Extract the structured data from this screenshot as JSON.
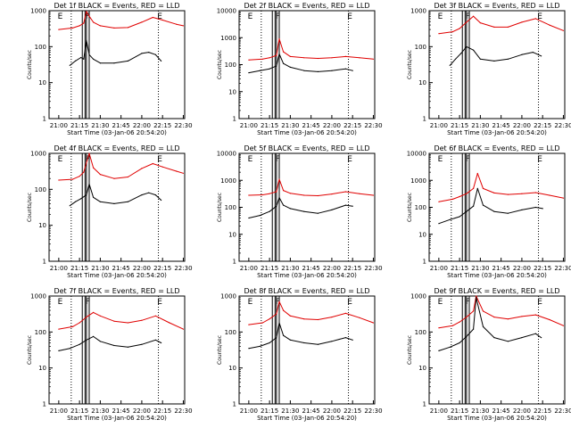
{
  "figure": {
    "title_template": "Det {n}f BLACK = Events, RED = LLD",
    "xlabel": "Start Time (03-Jan-06 20:54:20)",
    "ylabel": "Counts/sec",
    "marker_letters": [
      "E",
      "F",
      "E"
    ],
    "colors": {
      "events": "#000000",
      "lld": "#e00000",
      "frame": "#000000"
    }
  },
  "chart_data": [
    {
      "type": "line",
      "title": "Det 1f BLACK = Events, RED = LLD",
      "x_ticks": [
        "21:00",
        "21:15",
        "21:30",
        "21:45",
        "22:00",
        "22:15",
        "22:30"
      ],
      "y_ticks": [
        "1",
        "10",
        "100",
        "1000"
      ],
      "ylim": [
        1,
        1000
      ],
      "y_scale": "log",
      "xlabel": "Start Time (03-Jan-06 20:54:20)",
      "ylabel": "Counts/sec",
      "series": [
        {
          "name": "Events",
          "color": "#000000",
          "x": [
            "21:08",
            "21:12",
            "21:16",
            "21:18",
            "21:20",
            "21:22",
            "21:25",
            "21:30",
            "21:40",
            "21:50",
            "22:00",
            "22:05",
            "22:10",
            "22:14"
          ],
          "y": [
            30,
            40,
            50,
            45,
            150,
            60,
            45,
            35,
            35,
            40,
            65,
            70,
            60,
            40
          ]
        },
        {
          "name": "LLD",
          "color": "#e00000",
          "x": [
            "21:00",
            "21:10",
            "21:15",
            "21:18",
            "21:20",
            "21:22",
            "21:25",
            "21:30",
            "21:40",
            "21:50",
            "22:00",
            "22:08",
            "22:15",
            "22:25",
            "22:30"
          ],
          "y": [
            300,
            330,
            380,
            450,
            950,
            700,
            480,
            380,
            330,
            340,
            480,
            650,
            550,
            420,
            380
          ]
        }
      ]
    },
    {
      "type": "line",
      "title": "Det 2f BLACK = Events, RED = LLD",
      "x_ticks": [
        "21:00",
        "21:15",
        "21:30",
        "21:45",
        "22:00",
        "22:15",
        "22:30"
      ],
      "y_ticks": [
        "1",
        "10",
        "100",
        "1000",
        "10000"
      ],
      "ylim": [
        1,
        10000
      ],
      "y_scale": "log",
      "xlabel": "Start Time (03-Jan-06 20:54:20)",
      "ylabel": "Counts/sec",
      "series": [
        {
          "name": "Events",
          "color": "#000000",
          "x": [
            "21:00",
            "21:08",
            "21:15",
            "21:20",
            "21:22",
            "21:25",
            "21:30",
            "21:40",
            "21:50",
            "22:00",
            "22:10",
            "22:15"
          ],
          "y": [
            50,
            60,
            70,
            90,
            250,
            110,
            80,
            60,
            55,
            60,
            70,
            60
          ]
        },
        {
          "name": "LLD",
          "color": "#e00000",
          "x": [
            "21:00",
            "21:10",
            "21:15",
            "21:20",
            "21:22",
            "21:25",
            "21:30",
            "21:40",
            "21:50",
            "22:00",
            "22:10",
            "22:20",
            "22:30"
          ],
          "y": [
            150,
            160,
            180,
            220,
            900,
            300,
            200,
            180,
            170,
            180,
            200,
            180,
            160
          ]
        }
      ]
    },
    {
      "type": "line",
      "title": "Det 3f BLACK = Events, RED = LLD",
      "x_ticks": [
        "21:00",
        "21:15",
        "21:30",
        "21:45",
        "22:00",
        "22:15",
        "22:30"
      ],
      "y_ticks": [
        "1",
        "10",
        "100",
        "1000"
      ],
      "ylim": [
        1,
        1000
      ],
      "y_scale": "log",
      "xlabel": "Start Time (03-Jan-06 20:54:20)",
      "ylabel": "Counts/sec",
      "series": [
        {
          "name": "Events",
          "color": "#000000",
          "x": [
            "21:08",
            "21:12",
            "21:16",
            "21:20",
            "21:25",
            "21:30",
            "21:40",
            "21:50",
            "22:00",
            "22:08",
            "22:14"
          ],
          "y": [
            30,
            45,
            65,
            100,
            80,
            45,
            40,
            45,
            60,
            70,
            55
          ]
        },
        {
          "name": "LLD",
          "color": "#e00000",
          "x": [
            "21:00",
            "21:10",
            "21:15",
            "21:20",
            "21:25",
            "21:30",
            "21:40",
            "21:50",
            "22:00",
            "22:10",
            "22:20",
            "22:30"
          ],
          "y": [
            230,
            260,
            320,
            480,
            700,
            460,
            350,
            350,
            480,
            600,
            400,
            280
          ]
        }
      ]
    },
    {
      "type": "line",
      "title": "Det 4f BLACK = Events, RED = LLD",
      "x_ticks": [
        "21:00",
        "21:15",
        "21:30",
        "21:45",
        "22:00",
        "22:15",
        "22:30"
      ],
      "y_ticks": [
        "1",
        "10",
        "100",
        "1000"
      ],
      "ylim": [
        1,
        1000
      ],
      "y_scale": "log",
      "xlabel": "Start Time (03-Jan-06 20:54:20)",
      "ylabel": "Counts/sec",
      "series": [
        {
          "name": "Events",
          "color": "#000000",
          "x": [
            "21:08",
            "21:12",
            "21:16",
            "21:20",
            "21:22",
            "21:25",
            "21:30",
            "21:40",
            "21:50",
            "22:00",
            "22:05",
            "22:10",
            "22:14"
          ],
          "y": [
            35,
            45,
            55,
            70,
            140,
            60,
            45,
            40,
            45,
            70,
            80,
            70,
            50
          ]
        },
        {
          "name": "LLD",
          "color": "#e00000",
          "x": [
            "21:00",
            "21:10",
            "21:15",
            "21:18",
            "21:22",
            "21:25",
            "21:30",
            "21:40",
            "21:50",
            "22:00",
            "22:08",
            "22:15",
            "22:25",
            "22:30"
          ],
          "y": [
            180,
            190,
            230,
            300,
            1000,
            400,
            260,
            200,
            220,
            380,
            520,
            420,
            320,
            280
          ]
        }
      ]
    },
    {
      "type": "line",
      "title": "Det 5f BLACK = Events, RED = LLD",
      "x_ticks": [
        "21:00",
        "21:15",
        "21:30",
        "21:45",
        "22:00",
        "22:15",
        "22:30"
      ],
      "y_ticks": [
        "1",
        "10",
        "100",
        "1000",
        "10000"
      ],
      "ylim": [
        1,
        10000
      ],
      "y_scale": "log",
      "xlabel": "Start Time (03-Jan-06 20:54:20)",
      "ylabel": "Counts/sec",
      "series": [
        {
          "name": "Events",
          "color": "#000000",
          "x": [
            "21:00",
            "21:08",
            "21:15",
            "21:20",
            "21:22",
            "21:25",
            "21:30",
            "21:40",
            "21:50",
            "22:00",
            "22:10",
            "22:15"
          ],
          "y": [
            40,
            50,
            70,
            110,
            230,
            120,
            90,
            70,
            60,
            80,
            120,
            110
          ]
        },
        {
          "name": "LLD",
          "color": "#e00000",
          "x": [
            "21:00",
            "21:10",
            "21:15",
            "21:20",
            "21:22",
            "21:25",
            "21:30",
            "21:40",
            "21:50",
            "22:00",
            "22:10",
            "22:20",
            "22:30"
          ],
          "y": [
            280,
            290,
            320,
            380,
            1100,
            420,
            330,
            280,
            270,
            310,
            380,
            320,
            280
          ]
        }
      ]
    },
    {
      "type": "line",
      "title": "Det 6f BLACK = Events, RED = LLD",
      "x_ticks": [
        "21:00",
        "21:15",
        "21:30",
        "21:45",
        "22:00",
        "22:15",
        "22:30"
      ],
      "y_ticks": [
        "1",
        "10",
        "100",
        "1000",
        "10000"
      ],
      "ylim": [
        1,
        10000
      ],
      "y_scale": "log",
      "xlabel": "Start Time (03-Jan-06 20:54:20)",
      "ylabel": "Counts/sec",
      "series": [
        {
          "name": "Events",
          "color": "#000000",
          "x": [
            "21:00",
            "21:08",
            "21:15",
            "21:20",
            "21:25",
            "21:28",
            "21:32",
            "21:40",
            "21:50",
            "22:00",
            "22:10",
            "22:15"
          ],
          "y": [
            25,
            35,
            45,
            70,
            110,
            500,
            120,
            70,
            60,
            80,
            100,
            90
          ]
        },
        {
          "name": "LLD",
          "color": "#e00000",
          "x": [
            "21:00",
            "21:10",
            "21:15",
            "21:20",
            "21:25",
            "21:28",
            "21:32",
            "21:40",
            "21:50",
            "22:00",
            "22:10",
            "22:20",
            "22:30"
          ],
          "y": [
            160,
            200,
            250,
            320,
            500,
            1800,
            500,
            340,
            300,
            320,
            350,
            280,
            220
          ]
        }
      ]
    },
    {
      "type": "line",
      "title": "Det 7f BLACK = Events, RED = LLD",
      "x_ticks": [
        "21:00",
        "21:15",
        "21:30",
        "21:45",
        "22:00",
        "22:15",
        "22:30"
      ],
      "y_ticks": [
        "1",
        "10",
        "100",
        "1000"
      ],
      "ylim": [
        1,
        1000
      ],
      "y_scale": "log",
      "xlabel": "Start Time (03-Jan-06 20:54:20)",
      "ylabel": "Counts/sec",
      "series": [
        {
          "name": "Events",
          "color": "#000000",
          "x": [
            "21:00",
            "21:08",
            "21:15",
            "21:20",
            "21:25",
            "21:30",
            "21:40",
            "21:50",
            "22:00",
            "22:10",
            "22:14"
          ],
          "y": [
            30,
            35,
            45,
            60,
            75,
            55,
            42,
            38,
            45,
            60,
            50
          ]
        },
        {
          "name": "LLD",
          "color": "#e00000",
          "x": [
            "21:00",
            "21:10",
            "21:15",
            "21:20",
            "21:25",
            "21:30",
            "21:40",
            "21:50",
            "22:00",
            "22:10",
            "22:20",
            "22:30"
          ],
          "y": [
            120,
            140,
            180,
            260,
            350,
            280,
            200,
            180,
            210,
            280,
            180,
            120
          ]
        }
      ]
    },
    {
      "type": "line",
      "title": "Det 8f BLACK = Events, RED = LLD",
      "x_ticks": [
        "21:00",
        "21:15",
        "21:30",
        "21:45",
        "22:00",
        "22:15",
        "22:30"
      ],
      "y_ticks": [
        "1",
        "10",
        "100",
        "1000"
      ],
      "ylim": [
        1,
        1000
      ],
      "y_scale": "log",
      "xlabel": "Start Time (03-Jan-06 20:54:20)",
      "ylabel": "Counts/sec",
      "series": [
        {
          "name": "Events",
          "color": "#000000",
          "x": [
            "21:00",
            "21:08",
            "21:15",
            "21:20",
            "21:22",
            "21:25",
            "21:30",
            "21:40",
            "21:50",
            "22:00",
            "22:10",
            "22:15"
          ],
          "y": [
            35,
            40,
            50,
            70,
            180,
            80,
            60,
            50,
            45,
            55,
            70,
            60
          ]
        },
        {
          "name": "LLD",
          "color": "#e00000",
          "x": [
            "21:00",
            "21:10",
            "21:15",
            "21:20",
            "21:22",
            "21:25",
            "21:30",
            "21:40",
            "21:50",
            "22:00",
            "22:10",
            "22:20",
            "22:30"
          ],
          "y": [
            160,
            180,
            230,
            320,
            700,
            400,
            280,
            230,
            220,
            260,
            330,
            250,
            180
          ]
        }
      ]
    },
    {
      "type": "line",
      "title": "Det 9f BLACK = Events, RED = LLD",
      "x_ticks": [
        "21:00",
        "21:15",
        "21:30",
        "21:45",
        "22:00",
        "22:15",
        "22:30"
      ],
      "y_ticks": [
        "1",
        "10",
        "100",
        "1000"
      ],
      "ylim": [
        1,
        1000
      ],
      "y_scale": "log",
      "xlabel": "Start Time (03-Jan-06 20:54:20)",
      "ylabel": "Counts/sec",
      "series": [
        {
          "name": "Events",
          "color": "#000000",
          "x": [
            "21:00",
            "21:08",
            "21:15",
            "21:20",
            "21:25",
            "21:27",
            "21:32",
            "21:40",
            "21:50",
            "22:00",
            "22:10",
            "22:14"
          ],
          "y": [
            30,
            38,
            50,
            75,
            120,
            900,
            140,
            70,
            55,
            70,
            90,
            70
          ]
        },
        {
          "name": "LLD",
          "color": "#e00000",
          "x": [
            "21:00",
            "21:10",
            "21:15",
            "21:20",
            "21:25",
            "21:27",
            "21:32",
            "21:40",
            "21:50",
            "22:00",
            "22:10",
            "22:20",
            "22:30"
          ],
          "y": [
            130,
            150,
            190,
            260,
            380,
            1000,
            380,
            260,
            230,
            270,
            300,
            220,
            150
          ]
        }
      ]
    }
  ]
}
